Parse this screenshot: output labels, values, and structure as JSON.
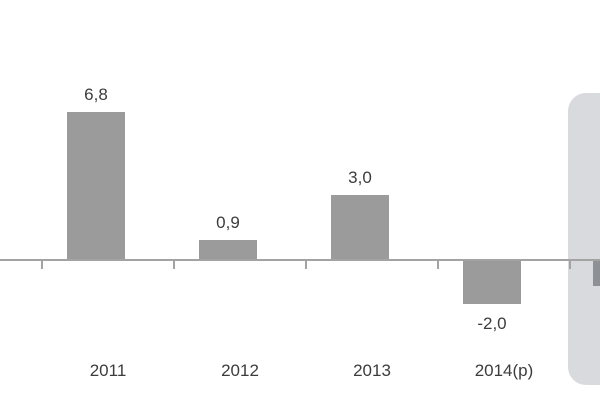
{
  "chart_data": {
    "type": "bar",
    "categories": [
      "2011",
      "2012",
      "2013",
      "2014(p)"
    ],
    "values": [
      6.8,
      0.9,
      3.0,
      -2.0
    ],
    "value_labels": [
      "6,8",
      "0,9",
      "3,0",
      "-2,0"
    ],
    "title": "",
    "xlabel": "",
    "ylabel": "",
    "ylim": [
      -3,
      8
    ],
    "grid": false,
    "legend": null,
    "decimal_separator": ",",
    "colors": {
      "bar": "#9b9b9b",
      "axis": "#a3a3a3",
      "tick": "#a3a3a3",
      "text": "#3c3c3c"
    }
  },
  "side_panel": {
    "note": "partially visible rounded card cropped at right edge",
    "bg_color": "#d9dadd",
    "fragment_bar_color": "#8d9094"
  }
}
